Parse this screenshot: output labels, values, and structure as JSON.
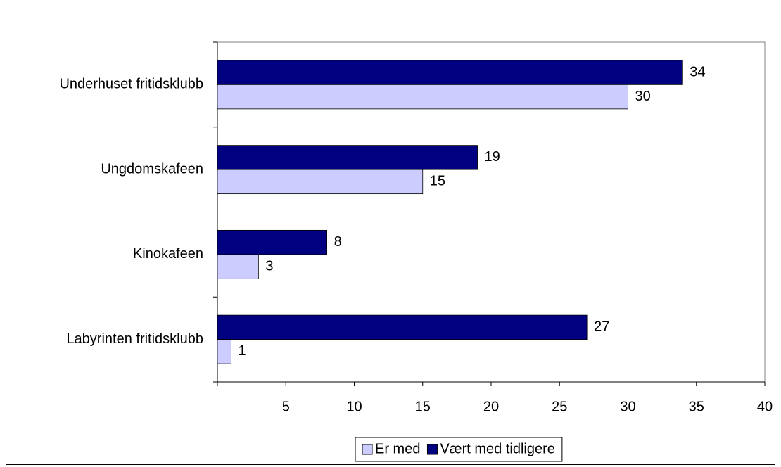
{
  "chart_data": {
    "type": "hbar",
    "categories": [
      "Underhuset fritidsklubb",
      "Ungdomskafeen",
      "Kinokafeen",
      "Labyrinten fritidsklubb"
    ],
    "series": [
      {
        "name": "Er med",
        "color": "#ccccff",
        "values": [
          30,
          15,
          3,
          1
        ]
      },
      {
        "name": "Vært med tidligere",
        "color": "#000080",
        "values": [
          34,
          19,
          8,
          27
        ]
      }
    ],
    "xlim": [
      0,
      40
    ],
    "xticks": [
      5,
      10,
      15,
      20,
      25,
      30,
      35,
      40
    ],
    "legend": "bottom"
  }
}
